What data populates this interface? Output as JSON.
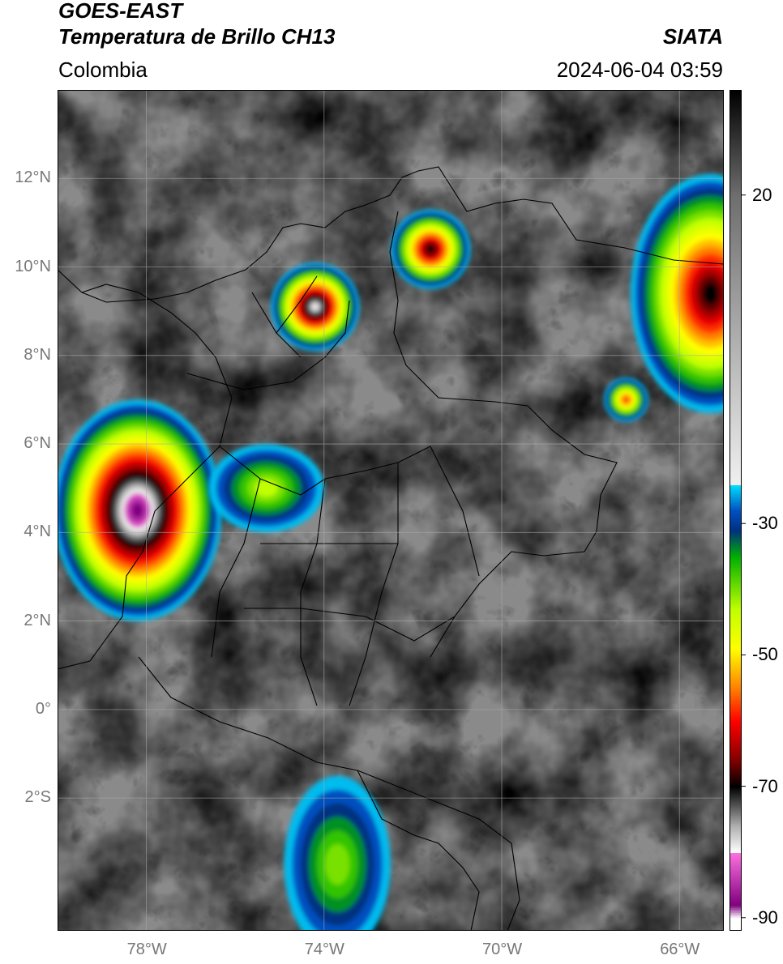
{
  "header": {
    "line1": "GOES-EAST",
    "line2": "Temperatura de Brillo CH13",
    "region": "Colombia",
    "source": "SIATA",
    "timestamp": "2024-06-04 03:59"
  },
  "map": {
    "lon_range": [
      -80,
      -65
    ],
    "lat_range": [
      -5,
      14
    ],
    "lat_ticks": [
      {
        "v": 12,
        "label": "12°N"
      },
      {
        "v": 10,
        "label": "10°N"
      },
      {
        "v": 8,
        "label": "8°N"
      },
      {
        "v": 6,
        "label": "6°N"
      },
      {
        "v": 4,
        "label": "4°N"
      },
      {
        "v": 2,
        "label": "2°N"
      },
      {
        "v": 0,
        "label": "0°"
      },
      {
        "v": -2,
        "label": "2°S"
      }
    ],
    "lon_ticks": [
      {
        "v": -78,
        "label": "78°W"
      },
      {
        "v": -74,
        "label": "74°W"
      },
      {
        "v": -70,
        "label": "70°W"
      },
      {
        "v": -66,
        "label": "66°W"
      }
    ],
    "grid": true,
    "cloud_clusters": [
      {
        "lon": -78.2,
        "lat": 4.5,
        "rx": 1.9,
        "ry": 2.5,
        "min_temp": -88
      },
      {
        "lon": -74.2,
        "lat": 9.1,
        "rx": 1.0,
        "ry": 1.0,
        "min_temp": -80
      },
      {
        "lon": -71.6,
        "lat": 10.4,
        "rx": 0.9,
        "ry": 0.9,
        "min_temp": -70
      },
      {
        "lon": -65.3,
        "lat": 9.4,
        "rx": 1.8,
        "ry": 2.7,
        "min_temp": -72
      },
      {
        "lon": -73.7,
        "lat": -3.5,
        "rx": 1.2,
        "ry": 2.0,
        "min_temp": -40
      },
      {
        "lon": -75.3,
        "lat": 5.0,
        "rx": 1.3,
        "ry": 1.0,
        "min_temp": -45
      },
      {
        "lon": -67.2,
        "lat": 7.0,
        "rx": 0.5,
        "ry": 0.5,
        "min_temp": -58
      }
    ]
  },
  "colorbar": {
    "range": [
      -92,
      36
    ],
    "ticks": [
      {
        "v": 20,
        "label": "20"
      },
      {
        "v": -30,
        "label": "-30"
      },
      {
        "v": -50,
        "label": "-50"
      },
      {
        "v": -70,
        "label": "-70"
      },
      {
        "v": -90,
        "label": "-90"
      }
    ]
  },
  "colors": {
    "cb_stops": [
      {
        "t": 36,
        "c": "#000000"
      },
      {
        "t": 20,
        "c": "#6e6e6e"
      },
      {
        "t": -24,
        "c": "#f0f0f0"
      },
      {
        "t": -24.01,
        "c": "#00e0ff"
      },
      {
        "t": -28,
        "c": "#0050c0"
      },
      {
        "t": -31,
        "c": "#003080"
      },
      {
        "t": -35,
        "c": "#00b000"
      },
      {
        "t": -43,
        "c": "#c0ff00"
      },
      {
        "t": -49,
        "c": "#ffff00"
      },
      {
        "t": -55,
        "c": "#ff8000"
      },
      {
        "t": -60,
        "c": "#ff0000"
      },
      {
        "t": -66,
        "c": "#800000"
      },
      {
        "t": -70,
        "c": "#000000"
      },
      {
        "t": -76,
        "c": "#b0b0b0"
      },
      {
        "t": -80,
        "c": "#ffffff"
      },
      {
        "t": -80.01,
        "c": "#ff70e0"
      },
      {
        "t": -88,
        "c": "#800080"
      },
      {
        "t": -90,
        "c": "#ffffff"
      }
    ]
  }
}
